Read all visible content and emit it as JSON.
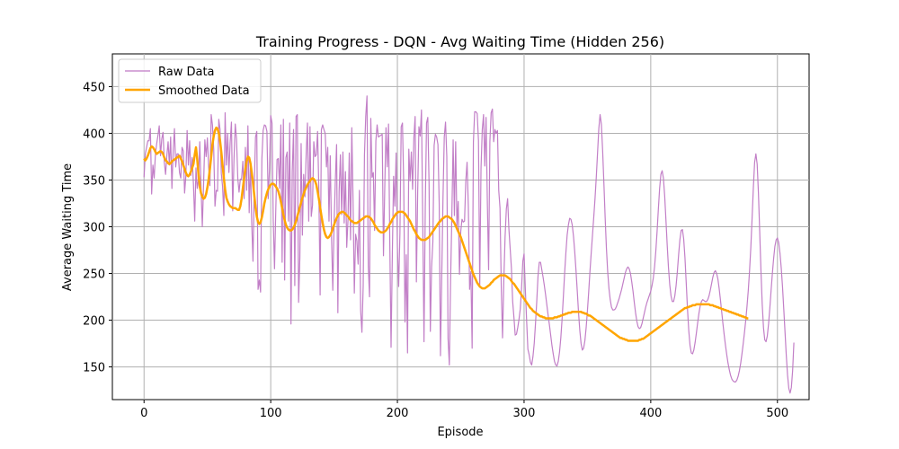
{
  "chart_data": {
    "type": "line",
    "title": "Training Progress - DQN - Avg Waiting Time (Hidden 256)",
    "xlabel": "Episode",
    "ylabel": "Average Waiting Time",
    "xlim": [
      -25,
      525
    ],
    "ylim": [
      115,
      485
    ],
    "x_ticks": [
      0,
      100,
      200,
      300,
      400,
      500
    ],
    "y_ticks": [
      150,
      200,
      250,
      300,
      350,
      400,
      450
    ],
    "grid": true,
    "legend_position": "top-left",
    "series": [
      {
        "name": "Raw Data",
        "color": "#bf78c4",
        "x_start": 0,
        "values": [
          353,
          378,
          385,
          392,
          392,
          405,
          335,
          366,
          352,
          378,
          389,
          398,
          408,
          376,
          394,
          401,
          369,
          356,
          376,
          391,
          366,
          396,
          341,
          381,
          405,
          364,
          378,
          378,
          358,
          352,
          385,
          381,
          336,
          354,
          403,
          366,
          392,
          355,
          374,
          346,
          306,
          363,
          341,
          351,
          391,
          342,
          300,
          345,
          393,
          375,
          395,
          364,
          344,
          420,
          409,
          383,
          322,
          339,
          338,
          415,
          404,
          357,
          343,
          312,
          422,
          366,
          400,
          358,
          391,
          412,
          317,
          372,
          410,
          394,
          352,
          337,
          351,
          351,
          370,
          330,
          385,
          339,
          408,
          315,
          370,
          305,
          263,
          343,
          396,
          402,
          233,
          243,
          230,
          372,
          403,
          409,
          408,
          402,
          330,
          361,
          419,
          411,
          307,
          255,
          318,
          372,
          373,
          341,
          409,
          262,
          415,
          243,
          374,
          380,
          306,
          411,
          196,
          359,
          404,
          237,
          418,
          420,
          219,
          267,
          389,
          291,
          356,
          332,
          378,
          411,
          306,
          407,
          311,
          323,
          391,
          375,
          377,
          402,
          339,
          227,
          404,
          409,
          404,
          400,
          364,
          385,
          306,
          376,
          291,
          232,
          302,
          349,
          388,
          208,
          338,
          377,
          313,
          380,
          304,
          359,
          278,
          307,
          379,
          286,
          406,
          327,
          229,
          292,
          285,
          260,
          339,
          210,
          187,
          237,
          377,
          418,
          440,
          258,
          225,
          416,
          353,
          358,
          296,
          392,
          409,
          396,
          397,
          398,
          399,
          269,
          340,
          406,
          364,
          410,
          284,
          171,
          270,
          354,
          322,
          379,
          278,
          236,
          293,
          407,
          411,
          345,
          198,
          270,
          165,
          383,
          349,
          380,
          340,
          395,
          418,
          241,
          336,
          407,
          397,
          425,
          307,
          177,
          321,
          411,
          417,
          346,
          188,
          257,
          284,
          387,
          399,
          396,
          388,
          325,
          162,
          246,
          331,
          396,
          412,
          375,
          180,
          152,
          243,
          313,
          393,
          312,
          391,
          300,
          327,
          249,
          295,
          308,
          305,
          306,
          349,
          369,
          322,
          233,
          252,
          170,
          391,
          423,
          423,
          421,
          392,
          236,
          362,
          404,
          420,
          365,
          417,
          327,
          254,
          391,
          422,
          426,
          391,
          404,
          400,
          403,
          339,
          320,
          236,
          181,
          242,
          289,
          319,
          330,
          298,
          277,
          256,
          220,
          203,
          184,
          185,
          192,
          201,
          212,
          234,
          263,
          271,
          233,
          200,
          169,
          163,
          155,
          152,
          161,
          175,
          196,
          220,
          247,
          262,
          262,
          254,
          246,
          237,
          227,
          216,
          205,
          195,
          184,
          173,
          164,
          156,
          152,
          151,
          156,
          166,
          181,
          201,
          225,
          250,
          272,
          291,
          302,
          309,
          308,
          302,
          290,
          273,
          253,
          231,
          208,
          189,
          175,
          168,
          170,
          178,
          192,
          210,
          230,
          252,
          272,
          291,
          310,
          330,
          353,
          379,
          405,
          420,
          410,
          382,
          347,
          310,
          277,
          252,
          234,
          222,
          214,
          211,
          211,
          212,
          215,
          219,
          223,
          228,
          233,
          239,
          245,
          251,
          255,
          257,
          255,
          250,
          241,
          231,
          219,
          208,
          199,
          193,
          191,
          192,
          196,
          202,
          208,
          214,
          219,
          223,
          227,
          231,
          237,
          245,
          257,
          274,
          295,
          319,
          341,
          356,
          360,
          352,
          333,
          307,
          280,
          256,
          238,
          226,
          220,
          220,
          226,
          237,
          252,
          270,
          286,
          296,
          297,
          287,
          267,
          240,
          212,
          189,
          173,
          165,
          164,
          168,
          176,
          186,
          197,
          207,
          215,
          220,
          222,
          221,
          220,
          220,
          222,
          226,
          232,
          239,
          246,
          251,
          253,
          250,
          244,
          234,
          222,
          209,
          196,
          184,
          173,
          163,
          154,
          147,
          141,
          137,
          135,
          134,
          134,
          136,
          140,
          146,
          154,
          164,
          175,
          187,
          200,
          215,
          232,
          253,
          278,
          309,
          342,
          369,
          378,
          367,
          336,
          295,
          253,
          217,
          192,
          179,
          177,
          183,
          196,
          213,
          232,
          250,
          266,
          279,
          286,
          288,
          283,
          272,
          256,
          236,
          212,
          187,
          162,
          141,
          127,
          122,
          128,
          146,
          176
        ]
      },
      {
        "name": "Smoothed Data",
        "color": "#ffa500",
        "x_start": 0,
        "values": [
          373,
          371,
          373,
          376,
          380,
          384,
          386,
          385,
          383,
          380,
          378,
          379,
          380,
          381,
          380,
          378,
          374,
          371,
          370,
          368,
          367,
          368,
          370,
          371,
          372,
          373,
          374,
          375,
          376,
          373,
          370,
          366,
          362,
          358,
          355,
          354,
          356,
          359,
          363,
          367,
          377,
          385,
          372,
          356,
          343,
          336,
          332,
          330,
          331,
          335,
          342,
          351,
          362,
          375,
          388,
          397,
          403,
          406,
          405,
          400,
          392,
          380,
          366,
          352,
          340,
          331,
          327,
          324,
          322,
          321,
          320,
          320,
          320,
          319,
          318,
          318,
          322,
          330,
          341,
          352,
          362,
          370,
          375,
          374,
          368,
          358,
          347,
          334,
          321,
          311,
          305,
          303,
          305,
          310,
          317,
          325,
          331,
          336,
          340,
          343,
          345,
          346,
          346,
          345,
          343,
          341,
          338,
          333,
          327,
          320,
          313,
          307,
          302,
          299,
          297,
          296,
          296,
          297,
          299,
          302,
          306,
          311,
          316,
          321,
          326,
          331,
          335,
          339,
          342,
          345,
          347,
          349,
          351,
          352,
          351,
          349,
          345,
          338,
          330,
          321,
          312,
          304,
          297,
          292,
          289,
          288,
          289,
          291,
          294,
          298,
          302,
          306,
          309,
          312,
          314,
          315,
          316,
          316,
          315,
          314,
          312,
          311,
          309,
          307,
          306,
          305,
          304,
          304,
          304,
          305,
          306,
          307,
          308,
          309,
          310,
          311,
          311,
          311,
          310,
          309,
          307,
          305,
          302,
          300,
          298,
          296,
          295,
          294,
          294,
          294,
          295,
          296,
          298,
          300,
          303,
          305,
          308,
          310,
          312,
          314,
          315,
          316,
          316,
          316,
          316,
          315,
          314,
          312,
          310,
          308,
          306,
          303,
          300,
          297,
          295,
          292,
          290,
          288,
          287,
          286,
          286,
          286,
          286,
          287,
          288,
          289,
          291,
          293,
          295,
          297,
          299,
          301,
          303,
          305,
          306,
          308,
          309,
          310,
          311,
          311,
          311,
          310,
          309,
          308,
          306,
          304,
          301,
          298,
          295,
          292,
          289,
          285,
          281,
          277,
          273,
          269,
          265,
          261,
          257,
          253,
          249,
          246,
          243,
          240,
          238,
          236,
          235,
          234,
          234,
          234,
          235,
          236,
          237,
          238,
          240,
          241,
          243,
          244,
          245,
          246,
          247,
          248,
          248,
          248,
          248,
          248,
          247,
          246,
          245,
          244,
          242,
          240,
          239,
          237,
          235,
          233,
          231,
          229,
          227,
          225,
          223,
          221,
          219,
          217,
          215,
          213,
          212,
          210,
          209,
          208,
          207,
          206,
          205,
          204,
          204,
          203,
          203,
          202,
          202,
          202,
          202,
          202,
          202,
          202,
          203,
          203,
          203,
          204,
          204,
          205,
          205,
          206,
          206,
          207,
          207,
          208,
          208,
          208,
          209,
          209,
          209,
          209,
          209,
          209,
          209,
          209,
          208,
          208,
          207,
          207,
          206,
          205,
          205,
          204,
          203,
          202,
          201,
          200,
          199,
          198,
          197,
          196,
          195,
          194,
          193,
          192,
          191,
          190,
          189,
          188,
          187,
          186,
          185,
          184,
          183,
          182,
          181,
          181,
          180,
          180,
          179,
          179,
          178,
          178,
          178,
          178,
          178,
          178,
          178,
          178,
          178,
          179,
          179,
          180,
          180,
          181,
          182,
          183,
          184,
          185,
          186,
          187,
          188,
          189,
          190,
          191,
          192,
          193,
          194,
          195,
          196,
          197,
          198,
          199,
          200,
          201,
          202,
          203,
          204,
          205,
          206,
          207,
          208,
          209,
          210,
          211,
          212,
          213,
          213,
          214,
          214,
          215,
          215,
          216,
          216,
          216,
          217,
          217,
          217,
          217,
          217,
          217,
          217,
          217,
          217,
          217,
          217,
          216,
          216,
          216,
          215,
          215,
          214,
          214,
          213,
          213,
          212,
          212,
          211,
          211,
          210,
          210,
          209,
          209,
          208,
          208,
          207,
          207,
          206,
          206,
          205,
          205,
          204,
          204,
          203,
          203,
          202,
          202
        ]
      }
    ]
  }
}
